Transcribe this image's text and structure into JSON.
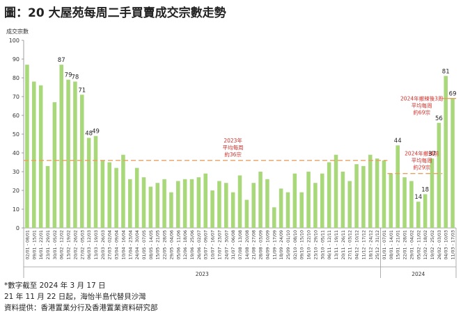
{
  "title": "圖：20 大屋苑每周二手買賣成交宗數走勢",
  "notes": [
    "*數字截至 2024 年 3 月 17 日",
    "21 年 11 月 22 日起，海怡半島代替貝沙灣",
    "資料提供：香港置業分行及香港置業資料研究部"
  ],
  "chart_data": {
    "type": "bar",
    "ylabel": "成交宗數",
    "ylim": [
      0,
      100
    ],
    "yticks": [
      0,
      10,
      20,
      30,
      40,
      50,
      60,
      70,
      80,
      90,
      100
    ],
    "bar_color": "#a8d87a",
    "line_color": "#e8a060",
    "annotation_color": "#d0302a",
    "grid": false,
    "categories": [
      "02/01 - 08/01",
      "09/01 - 15/01",
      "16/01 - 22/01",
      "23/01 - 29/01",
      "30/01 - 05/02",
      "06/02 - 12/02",
      "13/02 - 19/02",
      "20/02 - 26/02",
      "27/02 - 05/03",
      "06/03 - 12/03",
      "13/03 - 19/03",
      "20/03 - 26/03",
      "27/03 - 02/04",
      "03/04 - 09/04",
      "10/04 - 16/04",
      "17/04 - 23/04",
      "24/04 - 30/04",
      "01/05 - 07/05",
      "08/05 - 14/05",
      "15/05 - 21/05",
      "22/05 - 28/05",
      "29/05 - 04/06",
      "05/06 - 11/06",
      "12/06 - 18/06",
      "19/06 - 25/06",
      "26/06 - 02/07",
      "03/07 - 09/07",
      "10/07 - 16/07",
      "17/07 - 23/07",
      "24/07 - 30/07",
      "31/07 - 06/08",
      "07/08 - 13/08",
      "14/08 - 20/08",
      "21/08 - 27/08",
      "28/08 - 03/09",
      "04/09 - 10/09",
      "11/09 - 17/09",
      "18/09 - 24/09",
      "25/09 - 01/10",
      "02/10 - 08/10",
      "09/10 - 15/10",
      "16/10 - 22/10",
      "23/10 - 29/10",
      "30/10 - 05/11",
      "06/11 - 12/11",
      "13/11 - 19/11",
      "20/11 - 26/11",
      "27/11 - 03/12",
      "04/12 - 10/12",
      "11/12 - 17/12",
      "18/12 - 24/12",
      "25/12 - 31/12",
      "01/01 - 07/01",
      "08/01 - 14/01",
      "15/01 - 21/01",
      "22/01 - 28/01",
      "29/01 - 04/02",
      "05/02 - 11/02",
      "12/02 - 18/02",
      "19/02 - 25/02",
      "26/02 - 03/03",
      "04/03 - 10/03",
      "11/03 - 17/03"
    ],
    "values": [
      87,
      78,
      76,
      33,
      67,
      87,
      79,
      78,
      71,
      48,
      49,
      36,
      35,
      32,
      39,
      26,
      32,
      27,
      22,
      24,
      26,
      19,
      25,
      26,
      26,
      27,
      29,
      20,
      25,
      24,
      19,
      28,
      15,
      24,
      30,
      26,
      11,
      21,
      19,
      29,
      19,
      30,
      24,
      29,
      35,
      39,
      30,
      25,
      34,
      33,
      39,
      37,
      36,
      29,
      44,
      27,
      25,
      14,
      18,
      37,
      56,
      81,
      69
    ],
    "data_labels": [
      {
        "index": 5,
        "value": 87
      },
      {
        "index": 6,
        "value": 79
      },
      {
        "index": 7,
        "value": 78
      },
      {
        "index": 8,
        "value": 71
      },
      {
        "index": 9,
        "value": 48
      },
      {
        "index": 10,
        "value": 49
      },
      {
        "index": 54,
        "value": 44
      },
      {
        "index": 57,
        "value": 14
      },
      {
        "index": 58,
        "value": 18
      },
      {
        "index": 59,
        "value": 37
      },
      {
        "index": 60,
        "value": 56
      },
      {
        "index": 61,
        "value": 81
      },
      {
        "index": 62,
        "value": 69
      }
    ],
    "reference_lines": [
      {
        "label_lines": [
          "2023年",
          "平均每周",
          "約36宗"
        ],
        "value": 36,
        "from_index": 0,
        "to_index": 52,
        "style": "dashed"
      },
      {
        "label_lines": [
          "2024年撤辣前",
          "平均每周",
          "約29宗"
        ],
        "value": 29,
        "from_index": 53,
        "to_index": 60,
        "style": "dashed"
      },
      {
        "label_lines": [
          "2024年撤辣後3周",
          "平均每周",
          "約69宗"
        ],
        "value": 69,
        "from_index": 61,
        "to_index": 62,
        "style": "solid"
      }
    ],
    "year_groups": [
      {
        "label": "2023",
        "from_index": 0,
        "to_index": 51
      },
      {
        "label": "2024",
        "from_index": 52,
        "to_index": 62
      }
    ]
  }
}
